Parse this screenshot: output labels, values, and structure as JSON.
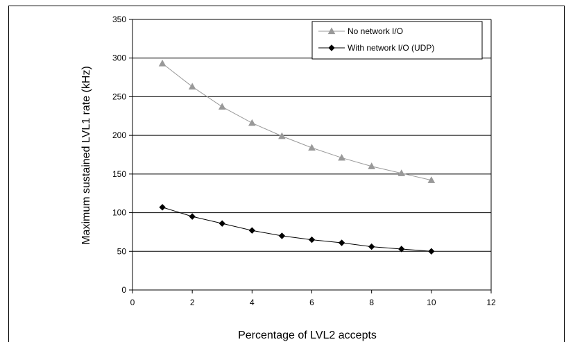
{
  "chart_data": {
    "type": "line",
    "title": "",
    "xlabel": "Percentage of LVL2 accepts",
    "ylabel": "Maximum sustained LVL1 rate (kHz)",
    "xlim": [
      0,
      12
    ],
    "ylim": [
      0,
      350
    ],
    "xticks": [
      0,
      2,
      4,
      6,
      8,
      10,
      12
    ],
    "yticks": [
      0,
      50,
      100,
      150,
      200,
      250,
      300,
      350
    ],
    "grid": "horizontal",
    "legend_position": "top-right",
    "series": [
      {
        "name": "No network I/O",
        "color": "#999999",
        "marker": "triangle",
        "x": [
          1,
          2,
          3,
          4,
          5,
          6,
          7,
          8,
          9,
          10
        ],
        "y": [
          293,
          263,
          237,
          216,
          199,
          184,
          171,
          160,
          151,
          142
        ]
      },
      {
        "name": "With network I/O (UDP)",
        "color": "#000000",
        "marker": "diamond",
        "x": [
          1,
          2,
          3,
          4,
          5,
          6,
          7,
          8,
          9,
          10
        ],
        "y": [
          107,
          95,
          86,
          77,
          70,
          65,
          61,
          56,
          53,
          50
        ]
      }
    ]
  }
}
